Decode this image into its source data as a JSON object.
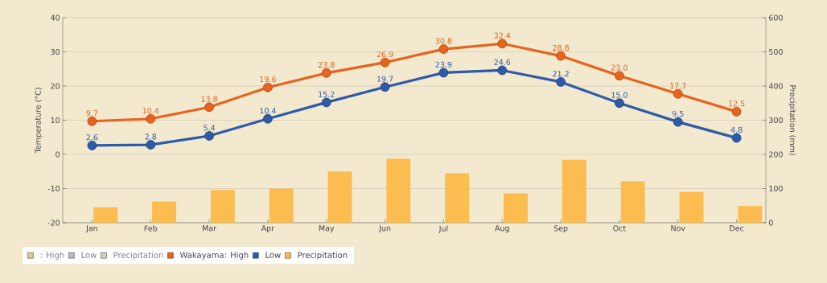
{
  "chart_data": {
    "type": "line",
    "categories": [
      "Jan",
      "Feb",
      "Mar",
      "Apr",
      "May",
      "Jun",
      "Jul",
      "Aug",
      "Sep",
      "Oct",
      "Nov",
      "Dec"
    ],
    "ylabel": "Temperature (°C)",
    "y2label": "Precipitation (mm)",
    "ylim": [
      -20,
      40
    ],
    "yticks": [
      -20,
      -10,
      0,
      10,
      20,
      30,
      40
    ],
    "y2lim": [
      0,
      600
    ],
    "y2ticks": [
      0,
      100,
      200,
      300,
      400,
      500,
      600
    ],
    "grid": "y",
    "legend": "bottom left",
    "marker": "circle",
    "annotations": [
      ": High",
      "Low",
      "Precipitation"
    ],
    "series": [
      {
        "name": "Wakayama: High",
        "color": "#e8641e",
        "values": [
          9.7,
          10.4,
          13.8,
          19.6,
          23.8,
          26.9,
          30.8,
          32.4,
          28.8,
          23.0,
          17.7,
          12.5
        ],
        "value_labels": [
          "9.7",
          "10.4",
          "13.8",
          "19.6",
          "23.8",
          "26.9",
          "30.8",
          "32.4",
          "28.8",
          "23.0",
          "17.7",
          "12.5"
        ]
      },
      {
        "name": "Low",
        "color": "#2e5aa8",
        "values": [
          2.6,
          2.8,
          5.4,
          10.4,
          15.2,
          19.7,
          23.9,
          24.6,
          21.2,
          15.0,
          9.5,
          4.8
        ],
        "value_labels": [
          "2.6",
          "2.8",
          "5.4",
          "10.4",
          "15.2",
          "19.7",
          "23.9",
          "24.6",
          "21.2",
          "15.0",
          "9.5",
          "4.8"
        ]
      },
      {
        "name": "Precipitation",
        "type": "bar",
        "axis": "y2",
        "color": "#fbbc50",
        "values": [
          45,
          62,
          96,
          100,
          150,
          187,
          145,
          86,
          184,
          121,
          90,
          49
        ]
      }
    ]
  }
}
